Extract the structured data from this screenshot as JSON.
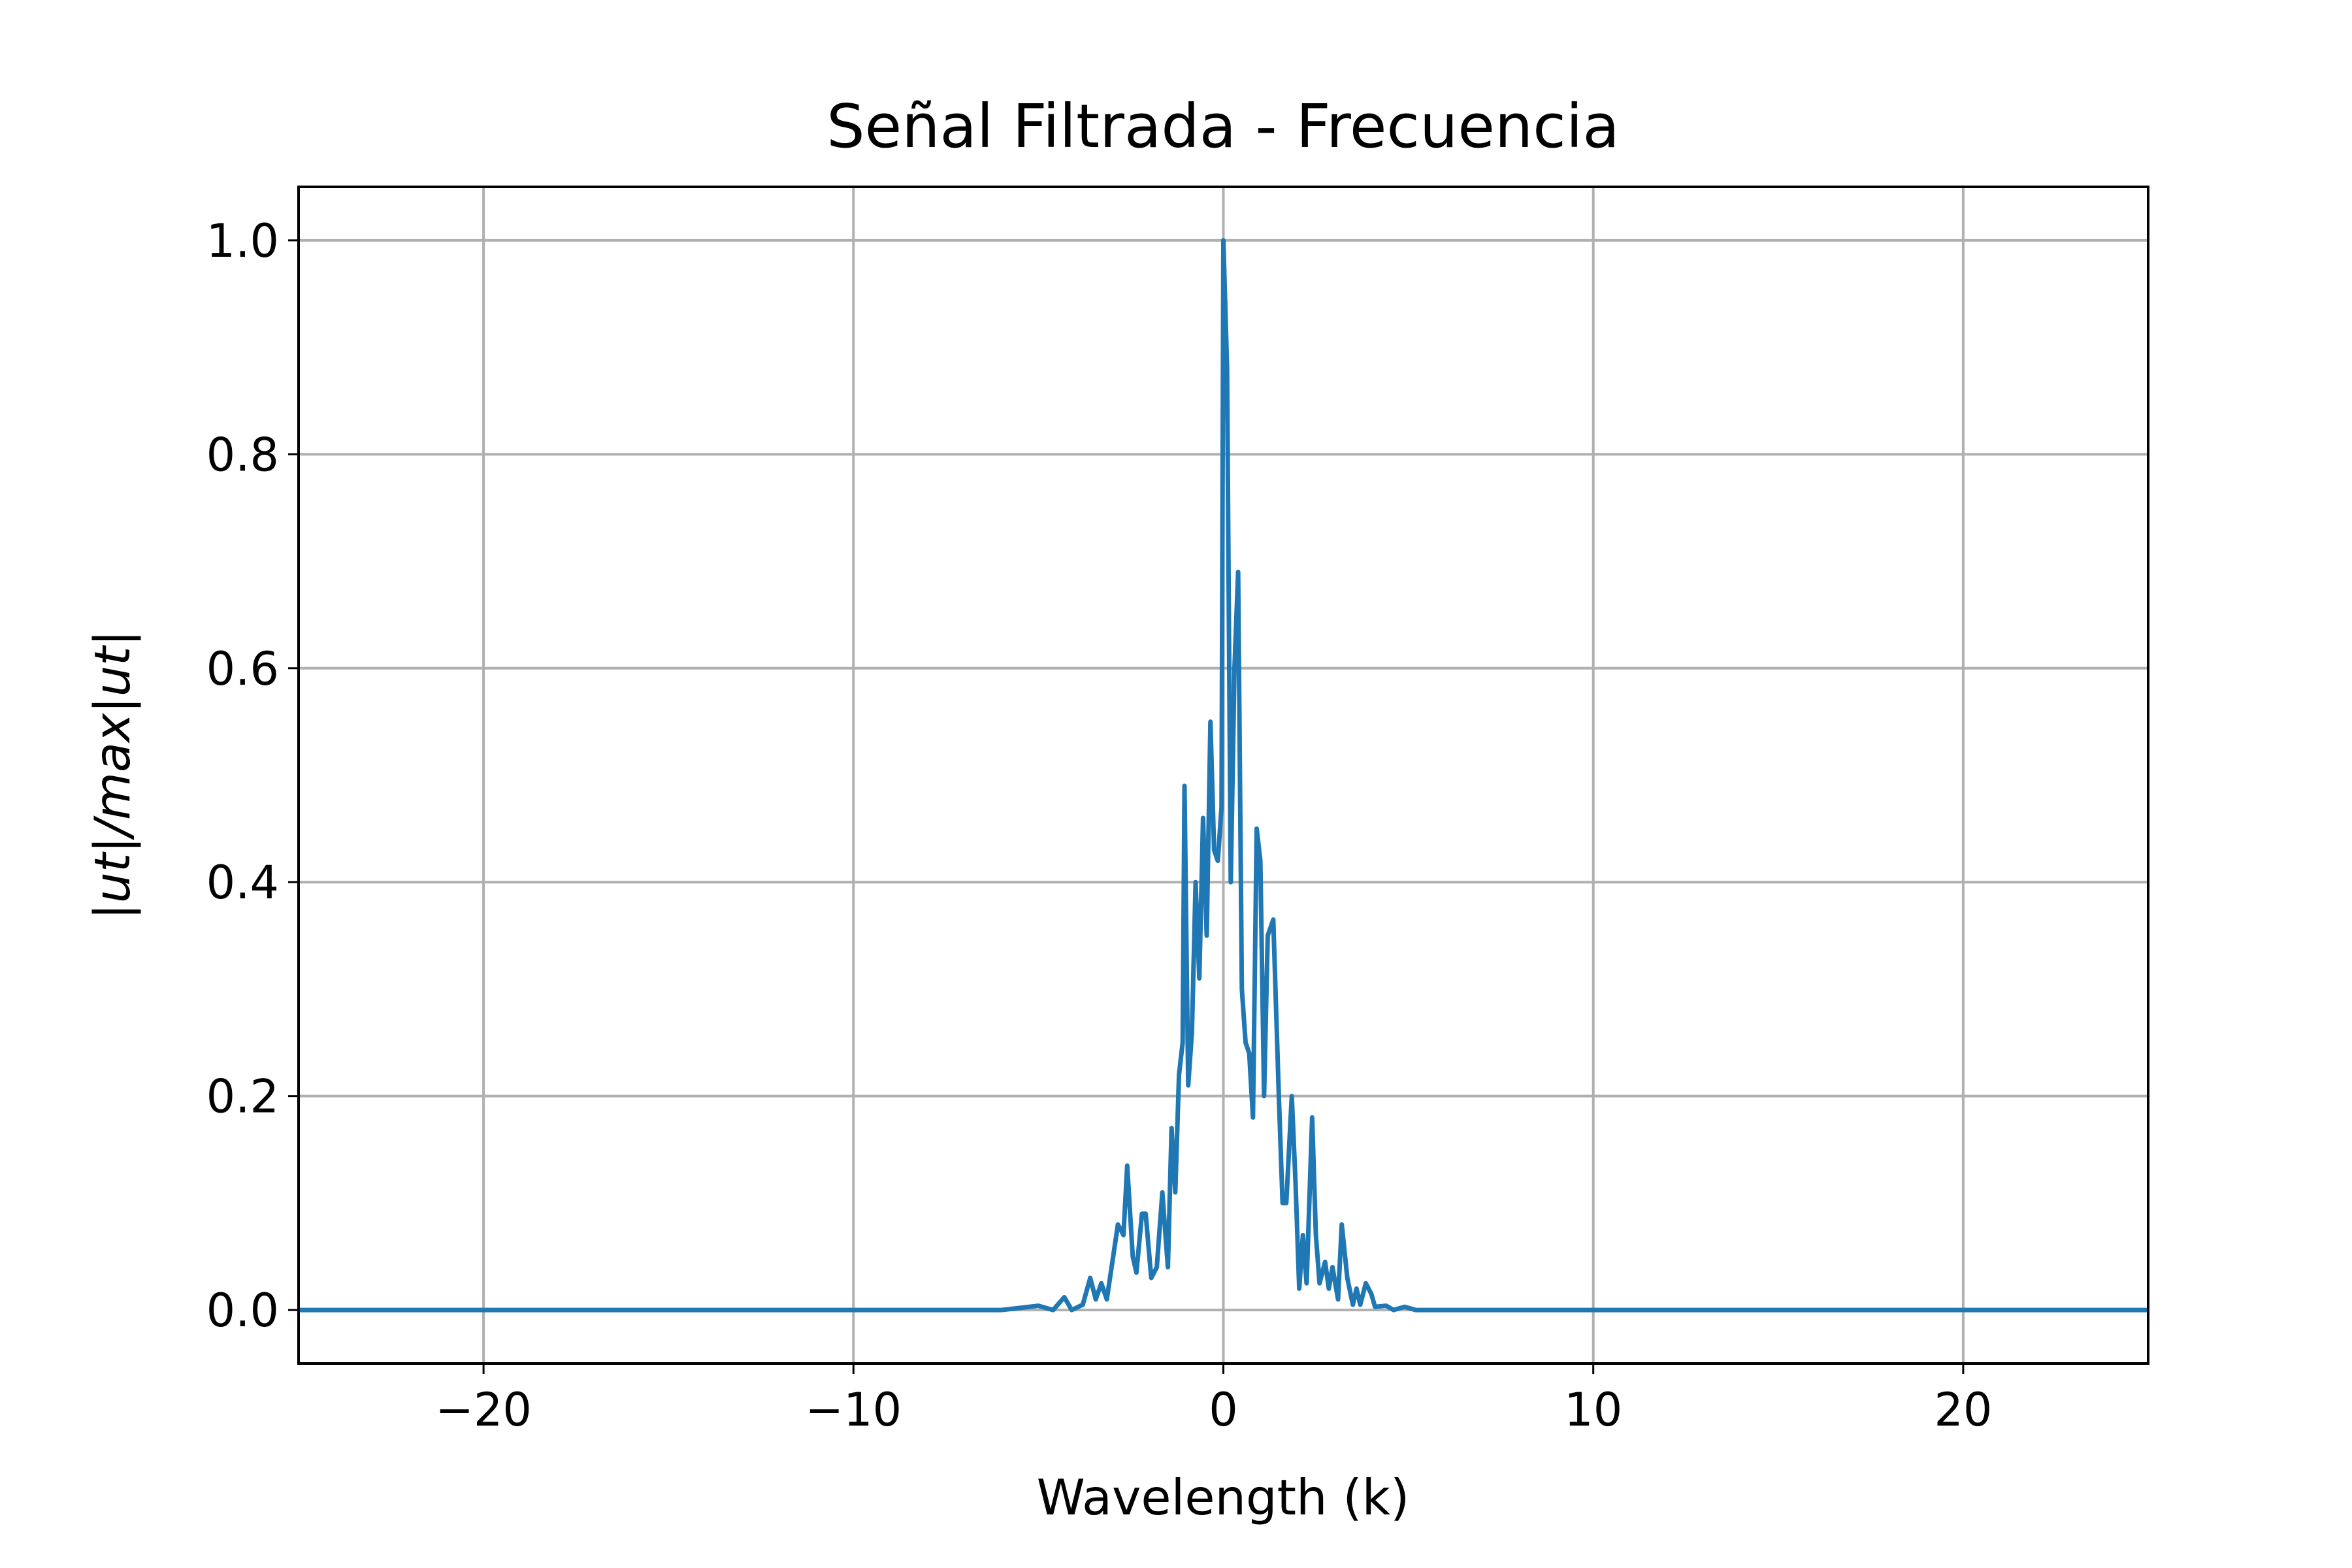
{
  "chart_data": {
    "type": "line",
    "title": "Señal Filtrada - Frecuencia",
    "x_label": "Wavelength (k)",
    "y_label": "|ut|/max|ut|",
    "grid": true,
    "xlim": [
      -25,
      25
    ],
    "ylim": [
      -0.05,
      1.05
    ],
    "xticks": [
      {
        "value": -20,
        "label": "−20"
      },
      {
        "value": -10,
        "label": "−10"
      },
      0,
      10,
      20
    ],
    "yticks": [
      {
        "value": 0,
        "label": "0.0"
      },
      0.2,
      0.4,
      0.6,
      0.8,
      {
        "value": 1,
        "label": "1.0"
      }
    ],
    "series": [
      {
        "color": "#1f77b4",
        "x": [
          -25,
          -6,
          -5,
          -4.6,
          -4.3,
          -4.1,
          -3.8,
          -3.6,
          -3.45,
          -3.3,
          -3.15,
          -3.0,
          -2.85,
          -2.7,
          -2.6,
          -2.45,
          -2.35,
          -2.2,
          -2.1,
          -1.95,
          -1.8,
          -1.65,
          -1.5,
          -1.4,
          -1.3,
          -1.2,
          -1.1,
          -1.05,
          -0.95,
          -0.85,
          -0.75,
          -0.65,
          -0.55,
          -0.45,
          -0.35,
          -0.25,
          -0.15,
          -0.05,
          0,
          0.1,
          0.2,
          0.3,
          0.4,
          0.5,
          0.6,
          0.7,
          0.8,
          0.9,
          1.0,
          1.1,
          1.2,
          1.35,
          1.5,
          1.6,
          1.7,
          1.85,
          1.95,
          2.05,
          2.15,
          2.25,
          2.4,
          2.5,
          2.6,
          2.75,
          2.85,
          2.95,
          3.1,
          3.2,
          3.35,
          3.5,
          3.6,
          3.7,
          3.85,
          4.0,
          4.1,
          4.4,
          4.6,
          4.9,
          5.2,
          6,
          25
        ],
        "values": [
          0,
          0,
          0.004,
          0,
          0.012,
          0,
          0.005,
          0.03,
          0.01,
          0.025,
          0.01,
          0.045,
          0.08,
          0.07,
          0.135,
          0.05,
          0.035,
          0.09,
          0.09,
          0.03,
          0.04,
          0.11,
          0.04,
          0.17,
          0.11,
          0.22,
          0.25,
          0.49,
          0.21,
          0.26,
          0.4,
          0.31,
          0.46,
          0.35,
          0.55,
          0.43,
          0.42,
          0.47,
          1.0,
          0.88,
          0.4,
          0.6,
          0.69,
          0.3,
          0.25,
          0.24,
          0.18,
          0.45,
          0.42,
          0.2,
          0.35,
          0.365,
          0.2,
          0.1,
          0.1,
          0.2,
          0.12,
          0.02,
          0.07,
          0.025,
          0.18,
          0.07,
          0.025,
          0.045,
          0.02,
          0.04,
          0.01,
          0.08,
          0.03,
          0.005,
          0.02,
          0.005,
          0.025,
          0.015,
          0.003,
          0.004,
          0,
          0.003,
          0,
          0,
          0
        ]
      }
    ]
  }
}
